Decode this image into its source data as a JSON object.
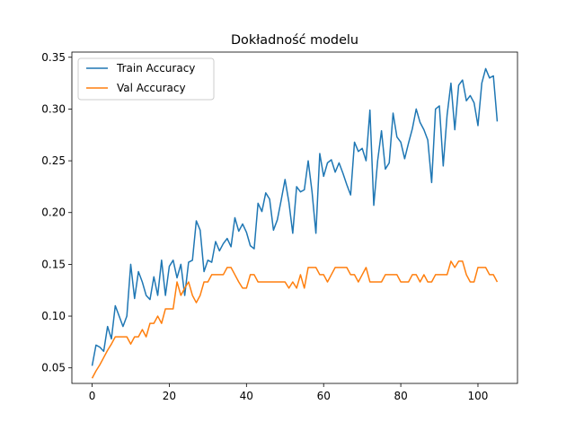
{
  "chart_data": {
    "type": "line",
    "title": "Dokładność modelu",
    "xlabel": "",
    "ylabel": "",
    "xlim": [
      -5.25,
      110.25
    ],
    "ylim": [
      0.035,
      0.355
    ],
    "x_ticks": [
      0,
      20,
      40,
      60,
      80,
      100
    ],
    "y_ticks": [
      0.05,
      0.1,
      0.15,
      0.2,
      0.25,
      0.3,
      0.35
    ],
    "y_tick_labels": [
      "0.05",
      "0.10",
      "0.15",
      "0.20",
      "0.25",
      "0.30",
      "0.35"
    ],
    "grid": false,
    "legend_position": "top-left",
    "x": [
      0,
      1,
      2,
      3,
      4,
      5,
      6,
      7,
      8,
      9,
      10,
      11,
      12,
      13,
      14,
      15,
      16,
      17,
      18,
      19,
      20,
      21,
      22,
      23,
      24,
      25,
      26,
      27,
      28,
      29,
      30,
      31,
      32,
      33,
      34,
      35,
      36,
      37,
      38,
      39,
      40,
      41,
      42,
      43,
      44,
      45,
      46,
      47,
      48,
      49,
      50,
      51,
      52,
      53,
      54,
      55,
      56,
      57,
      58,
      59,
      60,
      61,
      62,
      63,
      64,
      65,
      66,
      67,
      68,
      69,
      70,
      71,
      72,
      73,
      74,
      75,
      76,
      77,
      78,
      79,
      80,
      81,
      82,
      83,
      84,
      85,
      86,
      87,
      88,
      89,
      90,
      91,
      92,
      93,
      94,
      95,
      96,
      97,
      98,
      99,
      100,
      101,
      102,
      103,
      104,
      105
    ],
    "series": [
      {
        "name": "Train Accuracy",
        "color": "#1f77b4",
        "values": [
          0.052,
          0.072,
          0.07,
          0.066,
          0.09,
          0.078,
          0.11,
          0.1,
          0.09,
          0.1,
          0.15,
          0.117,
          0.143,
          0.133,
          0.12,
          0.116,
          0.138,
          0.12,
          0.154,
          0.12,
          0.148,
          0.154,
          0.137,
          0.15,
          0.12,
          0.152,
          0.154,
          0.192,
          0.183,
          0.143,
          0.154,
          0.152,
          0.172,
          0.163,
          0.17,
          0.175,
          0.167,
          0.195,
          0.182,
          0.189,
          0.181,
          0.168,
          0.165,
          0.209,
          0.201,
          0.219,
          0.213,
          0.183,
          0.193,
          0.212,
          0.232,
          0.21,
          0.18,
          0.225,
          0.22,
          0.222,
          0.25,
          0.22,
          0.18,
          0.257,
          0.235,
          0.248,
          0.251,
          0.239,
          0.248,
          0.238,
          0.227,
          0.217,
          0.268,
          0.259,
          0.262,
          0.25,
          0.299,
          0.207,
          0.25,
          0.279,
          0.242,
          0.248,
          0.296,
          0.273,
          0.268,
          0.252,
          0.267,
          0.281,
          0.3,
          0.287,
          0.28,
          0.27,
          0.229,
          0.3,
          0.303,
          0.245,
          0.294,
          0.325,
          0.28,
          0.323,
          0.328,
          0.308,
          0.313,
          0.306,
          0.284,
          0.325,
          0.339,
          0.33,
          0.332,
          0.288
        ]
      },
      {
        "name": "Val Accuracy",
        "color": "#ff7f0e",
        "values": [
          0.04,
          0.047,
          0.053,
          0.06,
          0.067,
          0.073,
          0.08,
          0.08,
          0.08,
          0.08,
          0.073,
          0.08,
          0.08,
          0.087,
          0.08,
          0.093,
          0.093,
          0.1,
          0.093,
          0.107,
          0.107,
          0.107,
          0.133,
          0.12,
          0.127,
          0.133,
          0.12,
          0.113,
          0.12,
          0.133,
          0.133,
          0.14,
          0.14,
          0.14,
          0.14,
          0.147,
          0.147,
          0.14,
          0.133,
          0.127,
          0.127,
          0.14,
          0.14,
          0.133,
          0.133,
          0.133,
          0.133,
          0.133,
          0.133,
          0.133,
          0.133,
          0.127,
          0.133,
          0.127,
          0.14,
          0.127,
          0.147,
          0.147,
          0.147,
          0.14,
          0.14,
          0.133,
          0.14,
          0.147,
          0.147,
          0.147,
          0.147,
          0.14,
          0.14,
          0.133,
          0.14,
          0.147,
          0.133,
          0.133,
          0.133,
          0.133,
          0.14,
          0.14,
          0.14,
          0.14,
          0.133,
          0.133,
          0.133,
          0.14,
          0.14,
          0.133,
          0.14,
          0.133,
          0.133,
          0.14,
          0.14,
          0.14,
          0.14,
          0.153,
          0.147,
          0.153,
          0.153,
          0.14,
          0.133,
          0.133,
          0.147,
          0.147,
          0.147,
          0.14,
          0.14,
          0.133
        ]
      }
    ]
  }
}
